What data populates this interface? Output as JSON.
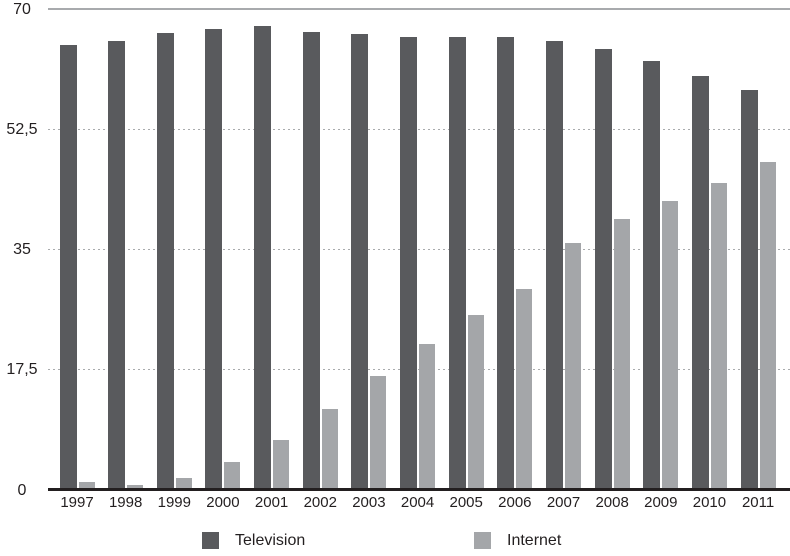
{
  "chart_data": {
    "type": "bar",
    "categories": [
      "1997",
      "1998",
      "1999",
      "2000",
      "2001",
      "2002",
      "2003",
      "2004",
      "2005",
      "2006",
      "2007",
      "2008",
      "2009",
      "2010",
      "2011"
    ],
    "series": [
      {
        "name": "Television",
        "color": "#595A5D",
        "values": [
          64.7,
          65.4,
          66.5,
          67.1,
          67.5,
          66.7,
          66.4,
          65.9,
          66.0,
          65.9,
          65.4,
          64.2,
          62.5,
          60.3,
          58.2
        ]
      },
      {
        "name": "Internet",
        "color": "#A4A6A9",
        "values": [
          1.2,
          0.8,
          1.7,
          4.1,
          7.3,
          11.8,
          16.6,
          21.2,
          25.5,
          29.2,
          36.0,
          39.5,
          42.0,
          44.7,
          47.7
        ]
      }
    ],
    "ylim": [
      0,
      70
    ],
    "yticks": [
      {
        "value": 70,
        "label": "70"
      },
      {
        "value": 52.5,
        "label": "52,5"
      },
      {
        "value": 35,
        "label": "35"
      },
      {
        "value": 17.5,
        "label": "17,5"
      },
      {
        "value": 0,
        "label": "0"
      }
    ],
    "grid": "horizontal-dotted",
    "legend_position": "bottom"
  },
  "legend": {
    "items": [
      {
        "label": "Television",
        "color": "#595A5D"
      },
      {
        "label": "Internet",
        "color": "#A4A6A9"
      }
    ]
  },
  "colors": {
    "background": "#ffffff",
    "axis_line": "#231f20",
    "gridline": "#a9abad",
    "top_border": "#a8aaad",
    "text": "#231f20"
  }
}
